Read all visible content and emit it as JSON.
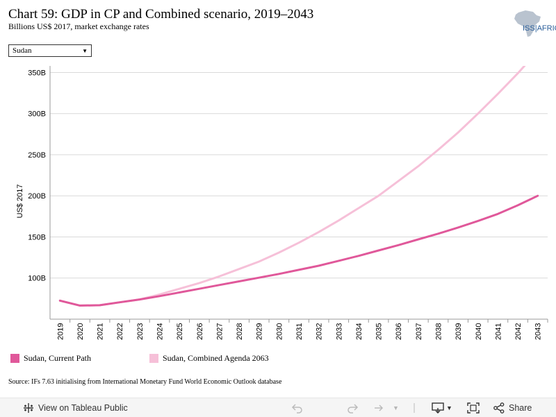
{
  "header": {
    "title": "Chart 59: GDP in CP and Combined scenario, 2019–2043",
    "subtitle": "Billions US$ 2017, market exchange rates",
    "logo_text": "ISS|AFRICA"
  },
  "filter": {
    "selected": "Sudan"
  },
  "chart_data": {
    "type": "line",
    "x": [
      2019,
      2020,
      2021,
      2022,
      2023,
      2024,
      2025,
      2026,
      2027,
      2028,
      2029,
      2030,
      2031,
      2032,
      2033,
      2034,
      2035,
      2036,
      2037,
      2038,
      2039,
      2040,
      2041,
      2042,
      2043
    ],
    "series": [
      {
        "name": "Sudan, Current Path",
        "color": "#e0589a",
        "values": [
          72.5,
          66.5,
          67,
          70.5,
          74,
          78,
          82.5,
          87,
          91.5,
          96,
          100.5,
          105,
          110,
          115,
          121,
          127,
          133.5,
          140,
          147,
          154,
          161.5,
          169.5,
          178,
          188.5,
          200
        ]
      },
      {
        "name": "Sudan, Combined Agenda 2063",
        "color": "#f6c0d8",
        "values": [
          72.5,
          66.5,
          67,
          70.5,
          74,
          80,
          87,
          94,
          102,
          111,
          120,
          131,
          143,
          156,
          170,
          185,
          200,
          218,
          236,
          256,
          277,
          300,
          324,
          349,
          376
        ]
      }
    ],
    "ylabel": "US$ 2017",
    "ylim": [
      50,
      358
    ],
    "yticks": [
      100,
      150,
      200,
      250,
      300,
      350
    ],
    "ytick_labels": [
      "100B",
      "150B",
      "200B",
      "250B",
      "300B",
      "350B"
    ],
    "grid": true,
    "legend": "bottom-left"
  },
  "legend": {
    "items": [
      {
        "label": "Sudan, Current Path",
        "color": "#e0589a"
      },
      {
        "label": "Sudan, Combined Agenda 2063",
        "color": "#f6c0d8"
      }
    ]
  },
  "footer": {
    "source": "Source: IFs 7.63 initialising from International Monetary Fund World Economic Outlook database"
  },
  "toolbar": {
    "view_label": "View on Tableau Public",
    "share_label": "Share"
  }
}
